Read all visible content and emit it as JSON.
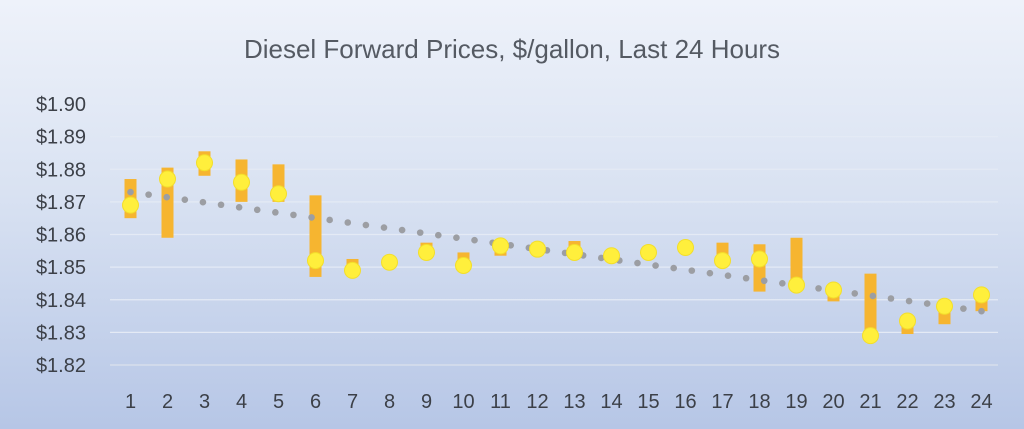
{
  "chart_data": {
    "type": "stock",
    "title": "Diesel Forward Prices, $/gallon, Last 24 Hours",
    "xlabel": "",
    "ylabel": "",
    "ylim": [
      1.82,
      1.9
    ],
    "y_ticks": [
      "$1.90",
      "$1.89",
      "$1.88",
      "$1.87",
      "$1.86",
      "$1.85",
      "$1.84",
      "$1.83",
      "$1.82"
    ],
    "y_tick_values": [
      1.9,
      1.89,
      1.88,
      1.87,
      1.86,
      1.85,
      1.84,
      1.83,
      1.82
    ],
    "categories": [
      "1",
      "2",
      "3",
      "4",
      "5",
      "6",
      "7",
      "8",
      "9",
      "10",
      "11",
      "12",
      "13",
      "14",
      "15",
      "16",
      "17",
      "18",
      "19",
      "20",
      "21",
      "22",
      "23",
      "24"
    ],
    "grid": true,
    "legend": "none",
    "series": [
      {
        "kind": "range_bar",
        "color": "#f6b530",
        "low": [
          1.865,
          1.859,
          1.878,
          1.87,
          1.87,
          1.847,
          1.848,
          1.8505,
          1.8535,
          1.8495,
          1.8535,
          1.8545,
          1.8535,
          1.8525,
          1.853,
          1.8545,
          1.8505,
          1.8425,
          1.8445,
          1.8395,
          1.8285,
          1.8295,
          1.8325,
          1.8365
        ],
        "high": [
          1.877,
          1.8805,
          1.8855,
          1.883,
          1.8815,
          1.872,
          1.8525,
          1.8525,
          1.8575,
          1.8545,
          1.8575,
          1.8575,
          1.858,
          1.8545,
          1.8555,
          1.858,
          1.8575,
          1.857,
          1.859,
          1.844,
          1.848,
          1.8345,
          1.84,
          1.842
        ]
      },
      {
        "kind": "marker",
        "color": "#ffef3c",
        "values": [
          1.869,
          1.877,
          1.882,
          1.876,
          1.8725,
          1.852,
          1.849,
          1.8515,
          1.8545,
          1.8505,
          1.8565,
          1.8555,
          1.8545,
          1.8535,
          1.8545,
          1.856,
          1.852,
          1.8525,
          1.8445,
          1.843,
          1.829,
          1.8335,
          1.838,
          1.8415
        ]
      },
      {
        "kind": "trend",
        "style": "dotted",
        "color": "#9c9ea3",
        "from": 1.873,
        "to": 1.8365
      }
    ]
  }
}
